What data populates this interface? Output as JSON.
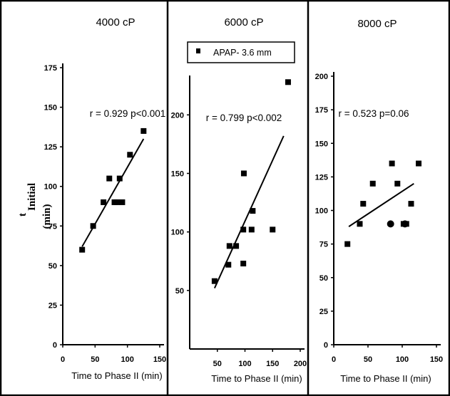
{
  "figure": {
    "y_label_main": "t",
    "y_label_sub": "Initial",
    "y_label_unit": "(min)",
    "legend_label": "APAP- 3.6 mm"
  },
  "chart_data": [
    {
      "type": "scatter",
      "title": "4000 cP",
      "xlabel": "Time to Phase II (min)",
      "ylabel": "t Initial (min)",
      "xlim": [
        0,
        150
      ],
      "ylim": [
        0,
        175
      ],
      "xticks": [
        0,
        50,
        100,
        150
      ],
      "yticks": [
        0,
        25,
        50,
        75,
        100,
        125,
        150,
        175
      ],
      "annotation": "r = 0.929  p<0.001",
      "grid": false,
      "series": [
        {
          "marker": "square",
          "points": [
            [
              30,
              60
            ],
            [
              47,
              75
            ],
            [
              63,
              90
            ],
            [
              72,
              105
            ],
            [
              80,
              90
            ],
            [
              84,
              90
            ],
            [
              88,
              105
            ],
            [
              92,
              90
            ],
            [
              104,
              120
            ],
            [
              125,
              135
            ]
          ]
        }
      ],
      "trendline": [
        [
          30,
          62
        ],
        [
          125,
          130
        ]
      ]
    },
    {
      "type": "scatter",
      "title": "6000 cP",
      "xlabel": "Time to Phase II (min)",
      "ylabel": "t Initial (min)",
      "xlim": [
        0,
        200
      ],
      "ylim": [
        0,
        230
      ],
      "xticks": [
        50,
        100,
        150,
        200
      ],
      "yticks": [
        50,
        100,
        150,
        200
      ],
      "annotation": "r =  0.799  p<0.002",
      "legend": "APAP- 3.6 mm",
      "legend_position": "top-right",
      "grid": false,
      "series": [
        {
          "name": "APAP- 3.6 mm",
          "marker": "square",
          "points": [
            [
              45,
              58
            ],
            [
              70,
              72
            ],
            [
              72,
              88
            ],
            [
              84,
              88
            ],
            [
              97,
              73
            ],
            [
              97,
              102
            ],
            [
              98,
              150
            ],
            [
              112,
              102
            ],
            [
              114,
              118
            ],
            [
              150,
              102
            ],
            [
              178,
              228
            ]
          ]
        }
      ],
      "trendline": [
        [
          45,
          52
        ],
        [
          170,
          182
        ]
      ]
    },
    {
      "type": "scatter",
      "title": "8000 cP",
      "xlabel": "Time to Phase II (min)",
      "ylabel": "t Initial (min)",
      "xlim": [
        0,
        150
      ],
      "ylim": [
        0,
        200
      ],
      "xticks": [
        0,
        50,
        100,
        150
      ],
      "yticks": [
        0,
        25,
        50,
        75,
        100,
        125,
        150,
        175,
        200
      ],
      "annotation": "r = 0.523  p=0.06",
      "grid": false,
      "series": [
        {
          "marker": "square",
          "points": [
            [
              20,
              75
            ],
            [
              38,
              90
            ],
            [
              43,
              105
            ],
            [
              57,
              120
            ],
            [
              85,
              135
            ],
            [
              93,
              120
            ],
            [
              102,
              90
            ],
            [
              106,
              90
            ],
            [
              113,
              105
            ],
            [
              124,
              135
            ]
          ]
        },
        {
          "marker": "circle",
          "points": [
            [
              83,
              90
            ],
            [
              104,
              90
            ]
          ]
        }
      ],
      "trendline": [
        [
          22,
          88
        ],
        [
          117,
          120
        ]
      ]
    }
  ]
}
